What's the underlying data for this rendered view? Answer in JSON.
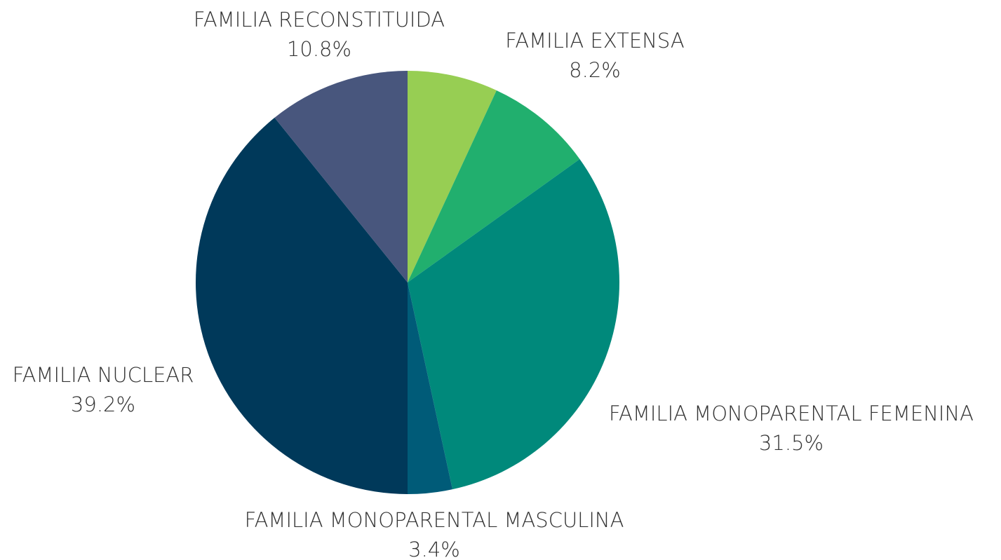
{
  "chart_data": {
    "type": "pie",
    "categories": [
      null,
      "FAMILIA EXTENSA",
      "FAMILIA MONOPARENTAL FEMENINA",
      "FAMILIA MONOPARENTAL MASCULINA",
      "FAMILIA NUCLEAR",
      "FAMILIA RECONSTITUIDA"
    ],
    "values": [
      6.9,
      8.2,
      31.5,
      3.4,
      39.2,
      10.8
    ],
    "value_labels": [
      null,
      "8.2%",
      "31.5%",
      "3.4%",
      "39.2%",
      "10.8%"
    ],
    "colors": [
      "#97ce53",
      "#21af6e",
      "#00897b",
      "#005b78",
      "#00395a",
      "#48567d"
    ]
  }
}
